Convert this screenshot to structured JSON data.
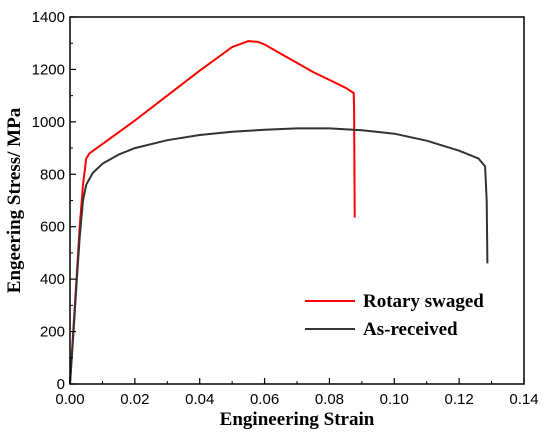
{
  "chart_data": {
    "type": "line",
    "xlabel": "Engineering Strain",
    "ylabel": "Engeering Stress/ MPa",
    "xlim": [
      0,
      0.14
    ],
    "ylim": [
      0,
      1400
    ],
    "xticks": [
      "0.00",
      "0.02",
      "0.04",
      "0.06",
      "0.08",
      "0.10",
      "0.12",
      "0.14"
    ],
    "yticks": [
      "0",
      "200",
      "400",
      "600",
      "800",
      "1000",
      "1200",
      "1400"
    ],
    "grid": false,
    "legend_position": "bottom-right",
    "series": [
      {
        "name": "Rotary swaged",
        "color": "#ff0000",
        "x": [
          0,
          0.001,
          0.002,
          0.003,
          0.004,
          0.005,
          0.006,
          0.01,
          0.02,
          0.03,
          0.04,
          0.05,
          0.055,
          0.058,
          0.06,
          0.065,
          0.07,
          0.075,
          0.08,
          0.085,
          0.0875,
          0.0876,
          0.0878
        ],
        "y": [
          0,
          200,
          400,
          600,
          760,
          860,
          880,
          915,
          1005,
          1100,
          1195,
          1285,
          1308,
          1305,
          1295,
          1260,
          1225,
          1190,
          1160,
          1130,
          1110,
          1050,
          635
        ]
      },
      {
        "name": "As-received",
        "color": "#333333",
        "x": [
          0,
          0.001,
          0.002,
          0.003,
          0.004,
          0.005,
          0.007,
          0.01,
          0.015,
          0.02,
          0.03,
          0.04,
          0.05,
          0.06,
          0.07,
          0.08,
          0.09,
          0.1,
          0.11,
          0.12,
          0.126,
          0.128,
          0.1285,
          0.1287
        ],
        "y": [
          0,
          180,
          380,
          560,
          700,
          760,
          805,
          840,
          875,
          900,
          930,
          950,
          962,
          970,
          975,
          975,
          968,
          955,
          928,
          890,
          860,
          830,
          700,
          460
        ]
      }
    ]
  }
}
